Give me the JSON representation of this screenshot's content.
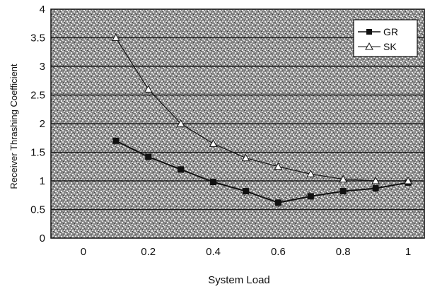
{
  "chart_data": {
    "type": "line",
    "title": "",
    "xlabel": "System Load",
    "ylabel": "Receiver Thrashing Coefficient",
    "xlim": [
      -0.1,
      1.05
    ],
    "ylim": [
      0,
      4
    ],
    "xticks": [
      0,
      0.2,
      0.4,
      0.6,
      0.8,
      1
    ],
    "xtick_labels": [
      "0",
      "0.2",
      "0.4",
      "0.6",
      "0.8",
      "1"
    ],
    "yticks": [
      0,
      0.5,
      1,
      1.5,
      2,
      2.5,
      3,
      3.5,
      4
    ],
    "ytick_labels": [
      "0",
      "0.5",
      "1",
      "1.5",
      "2",
      "2.5",
      "3",
      "3.5",
      "4"
    ],
    "grid": "horizontal",
    "legend_position": "top-right",
    "series": [
      {
        "name": "GR",
        "marker": "square",
        "color": "#111111",
        "x": [
          0.1,
          0.2,
          0.3,
          0.4,
          0.5,
          0.6,
          0.7,
          0.8,
          0.9,
          1.0
        ],
        "values": [
          1.7,
          1.42,
          1.2,
          0.98,
          0.82,
          0.62,
          0.73,
          0.82,
          0.87,
          0.97
        ]
      },
      {
        "name": "SK",
        "marker": "triangle",
        "color": "#111111",
        "x": [
          0.1,
          0.2,
          0.3,
          0.4,
          0.5,
          0.6,
          0.7,
          0.8,
          0.9,
          1.0
        ],
        "values": [
          3.5,
          2.6,
          2.0,
          1.65,
          1.4,
          1.25,
          1.12,
          1.03,
          1.0,
          1.0
        ]
      }
    ]
  }
}
